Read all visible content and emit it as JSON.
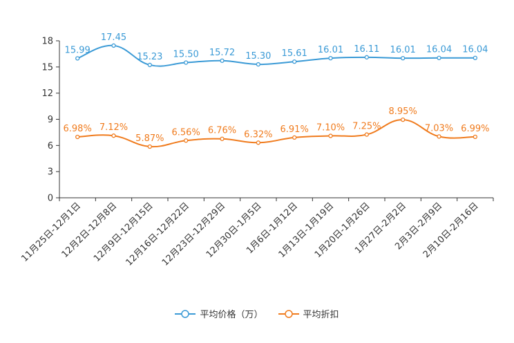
{
  "chart_data": {
    "type": "line",
    "categories": [
      "11月25日-12月1日",
      "12月2日-12月8日",
      "12月9日-12月15日",
      "12月16日-12月22日",
      "12月23日-12月29日",
      "12月30日-1月5日",
      "1月6日-1月12日",
      "1月13日-1月19日",
      "1月20日-1月26日",
      "1月27日-2月2日",
      "2月3日-2月9日",
      "2月10日-2月16日"
    ],
    "ylim": [
      0,
      18
    ],
    "yticks": [
      "0",
      "3",
      "6",
      "9",
      "12",
      "15",
      "18"
    ],
    "series": [
      {
        "name": "平均价格（万）",
        "color": "#3a9ad6",
        "values": [
          15.99,
          17.45,
          15.23,
          15.5,
          15.72,
          15.3,
          15.61,
          16.01,
          16.11,
          16.01,
          16.04,
          16.04
        ],
        "labels": [
          "15.99",
          "17.45",
          "15.23",
          "15.50",
          "15.72",
          "15.30",
          "15.61",
          "16.01",
          "16.11",
          "16.01",
          "16.04",
          "16.04"
        ]
      },
      {
        "name": "平均折扣",
        "color": "#f07b1d",
        "values": [
          6.98,
          7.12,
          5.87,
          6.56,
          6.76,
          6.32,
          6.91,
          7.1,
          7.25,
          8.95,
          7.03,
          6.99
        ],
        "labels": [
          "6.98%",
          "7.12%",
          "5.87%",
          "6.56%",
          "6.76%",
          "6.32%",
          "6.91%",
          "7.10%",
          "7.25%",
          "8.95%",
          "7.03%",
          "6.99%"
        ]
      }
    ]
  }
}
